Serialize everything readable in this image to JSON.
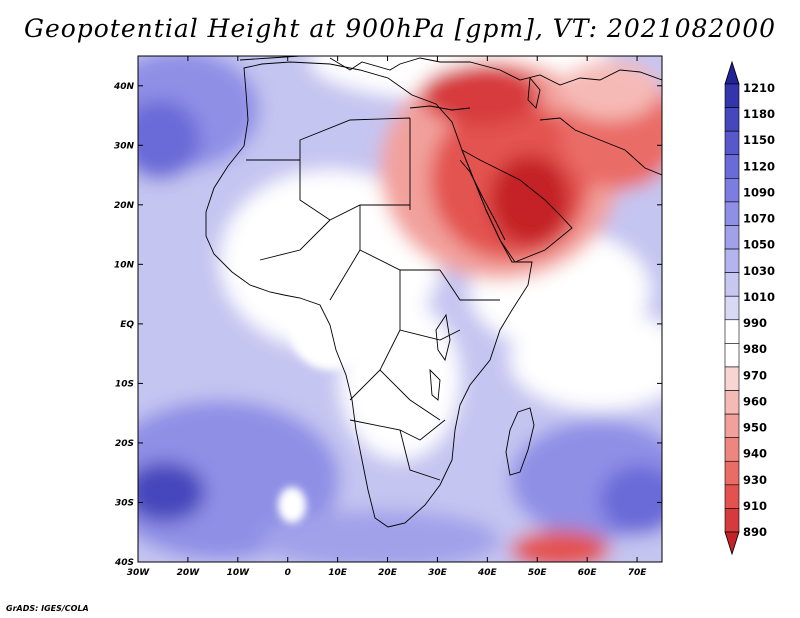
{
  "title": "Geopotential Height at 900hPa [gpm], VT: 2021082000",
  "credit": "GrADS: IGES/COLA",
  "colors": {
    "levels": [
      "#c42228",
      "#d73a3e",
      "#e3524f",
      "#ea6c66",
      "#ee8680",
      "#f2a09b",
      "#f6bab6",
      "#f9d5d2",
      "#ffffff",
      "#ffffff",
      "#d9d9f6",
      "#c7c7f2",
      "#b4b4ee",
      "#a1a1ea",
      "#8f8fe6",
      "#7c7ce1",
      "#6a6ad8",
      "#5858cc",
      "#4646bd",
      "#3434ad",
      "#22229b"
    ],
    "coast": "#000000"
  },
  "axes": {
    "x_ticks": [
      "30W",
      "20W",
      "10W",
      "0",
      "10E",
      "20E",
      "30E",
      "40E",
      "50E",
      "60E",
      "70E"
    ],
    "y_ticks": [
      "40S",
      "30S",
      "20S",
      "10S",
      "EQ",
      "10N",
      "20N",
      "30N",
      "40N"
    ],
    "lon_range": [
      -30,
      75
    ],
    "lat_range": [
      -40,
      45
    ]
  },
  "colorbar": {
    "labels": [
      "1210",
      "1180",
      "1150",
      "1120",
      "1090",
      "1070",
      "1050",
      "1030",
      "1010",
      "990",
      "980",
      "970",
      "960",
      "950",
      "940",
      "930",
      "910",
      "890"
    ]
  }
}
